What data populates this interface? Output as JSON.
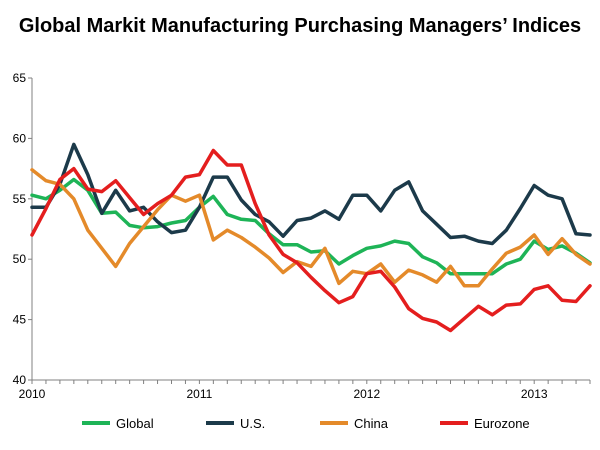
{
  "chart_data": {
    "type": "line",
    "title": "Global Markit Manufacturing Purchasing Managers’ Indices",
    "xlabel": "",
    "ylabel": "",
    "ylim": [
      40,
      65
    ],
    "yticks": [
      40,
      45,
      50,
      55,
      60,
      65
    ],
    "x_range": [
      "2010-01",
      "2013-05"
    ],
    "x_ticks": [
      "2010",
      "2011",
      "2012",
      "2013"
    ],
    "grid": false,
    "legend": "bottom",
    "x": [
      "2010-01",
      "2010-02",
      "2010-03",
      "2010-04",
      "2010-05",
      "2010-06",
      "2010-07",
      "2010-08",
      "2010-09",
      "2010-10",
      "2010-11",
      "2010-12",
      "2011-01",
      "2011-02",
      "2011-03",
      "2011-04",
      "2011-05",
      "2011-06",
      "2011-07",
      "2011-08",
      "2011-09",
      "2011-10",
      "2011-11",
      "2011-12",
      "2012-01",
      "2012-02",
      "2012-03",
      "2012-04",
      "2012-05",
      "2012-06",
      "2012-07",
      "2012-08",
      "2012-09",
      "2012-10",
      "2012-11",
      "2012-12",
      "2013-01",
      "2013-02",
      "2013-03",
      "2013-04",
      "2013-05"
    ],
    "series": [
      {
        "name": "Global",
        "color": "#1eb457",
        "values": [
          55.3,
          55.0,
          55.7,
          56.6,
          55.7,
          53.8,
          53.9,
          52.8,
          52.6,
          52.7,
          53.0,
          53.2,
          54.3,
          55.2,
          53.7,
          53.3,
          53.2,
          52.1,
          51.2,
          51.2,
          50.6,
          50.7,
          49.6,
          50.3,
          50.9,
          51.1,
          51.5,
          51.3,
          50.2,
          49.7,
          48.8,
          48.8,
          48.8,
          48.8,
          49.6,
          50.0,
          51.5,
          50.8,
          51.1,
          50.5,
          49.7
        ]
      },
      {
        "name": "U.S.",
        "color": "#1c3a4a",
        "values": [
          54.3,
          54.3,
          56.2,
          59.5,
          57.0,
          53.8,
          55.7,
          54.0,
          54.3,
          53.1,
          52.2,
          52.4,
          54.3,
          56.8,
          56.8,
          54.9,
          53.7,
          53.1,
          51.9,
          53.2,
          53.4,
          54.0,
          53.3,
          55.3,
          55.3,
          54.0,
          55.7,
          56.4,
          54.0,
          52.9,
          51.8,
          51.9,
          51.5,
          51.3,
          52.4,
          54.2,
          56.1,
          55.3,
          55.0,
          52.1,
          52.0
        ]
      },
      {
        "name": "China",
        "color": "#e48a2a",
        "values": [
          57.4,
          56.5,
          56.2,
          55.0,
          52.4,
          50.9,
          49.4,
          51.3,
          52.7,
          54.1,
          55.3,
          54.8,
          55.3,
          51.6,
          52.4,
          51.8,
          51.0,
          50.1,
          48.9,
          49.8,
          49.4,
          50.9,
          48.0,
          49.0,
          48.8,
          49.6,
          48.1,
          49.1,
          48.7,
          48.1,
          49.4,
          47.8,
          47.8,
          49.2,
          50.5,
          51.0,
          52.0,
          50.4,
          51.7,
          50.4,
          49.6
        ]
      },
      {
        "name": "Eurozone",
        "color": "#e41e1e",
        "values": [
          52.0,
          54.2,
          56.6,
          57.5,
          55.8,
          55.6,
          56.5,
          55.1,
          53.7,
          54.6,
          55.3,
          56.8,
          57.0,
          59.0,
          57.8,
          57.8,
          54.6,
          52.0,
          50.4,
          49.7,
          48.5,
          47.4,
          46.4,
          46.9,
          48.8,
          49.0,
          47.7,
          45.9,
          45.1,
          44.8,
          44.1,
          45.1,
          46.1,
          45.4,
          46.2,
          46.3,
          47.5,
          47.8,
          46.6,
          46.5,
          47.8
        ]
      }
    ]
  }
}
